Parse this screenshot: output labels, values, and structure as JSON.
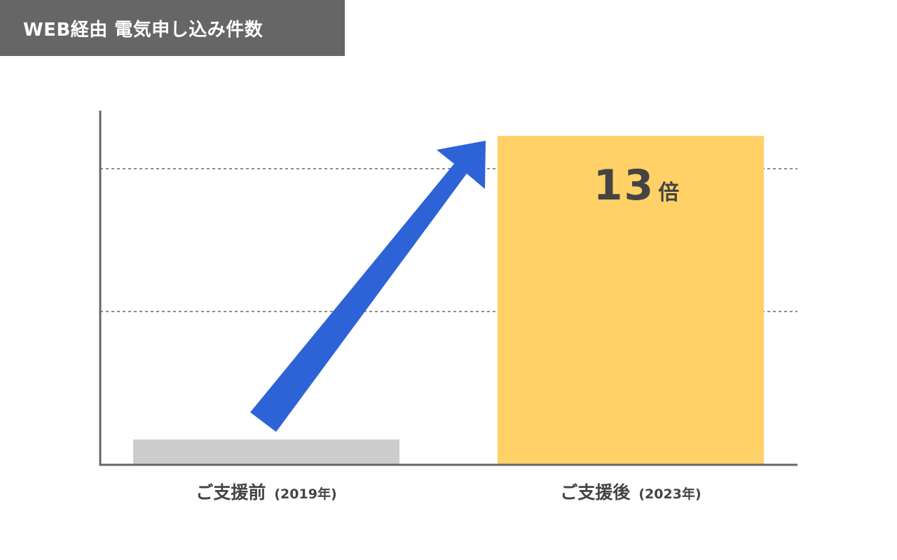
{
  "colors": {
    "title_bg": "#666666",
    "title_text": "#ffffff",
    "axis": "#666666",
    "grid": "#666666",
    "bar_before": "#cccccc",
    "bar_after": "#ffd166",
    "arrow": "#2d63d6",
    "label_text": "#444444"
  },
  "header": {
    "title": "WEB経由 電気申し込み件数"
  },
  "arrow": {
    "icon": "up-right-arrow-icon"
  },
  "chart_data": {
    "type": "bar",
    "categories": [
      "ご支援前",
      "ご支援後"
    ],
    "category_years": [
      "(2019年)",
      "(2023年)"
    ],
    "values": [
      1,
      13
    ],
    "ylim": [
      0,
      13
    ],
    "grid": true,
    "y_tick_labels": false,
    "annotation": {
      "value": "13",
      "unit": "倍",
      "target": "ご支援後"
    },
    "xlabel": "",
    "ylabel": ""
  }
}
